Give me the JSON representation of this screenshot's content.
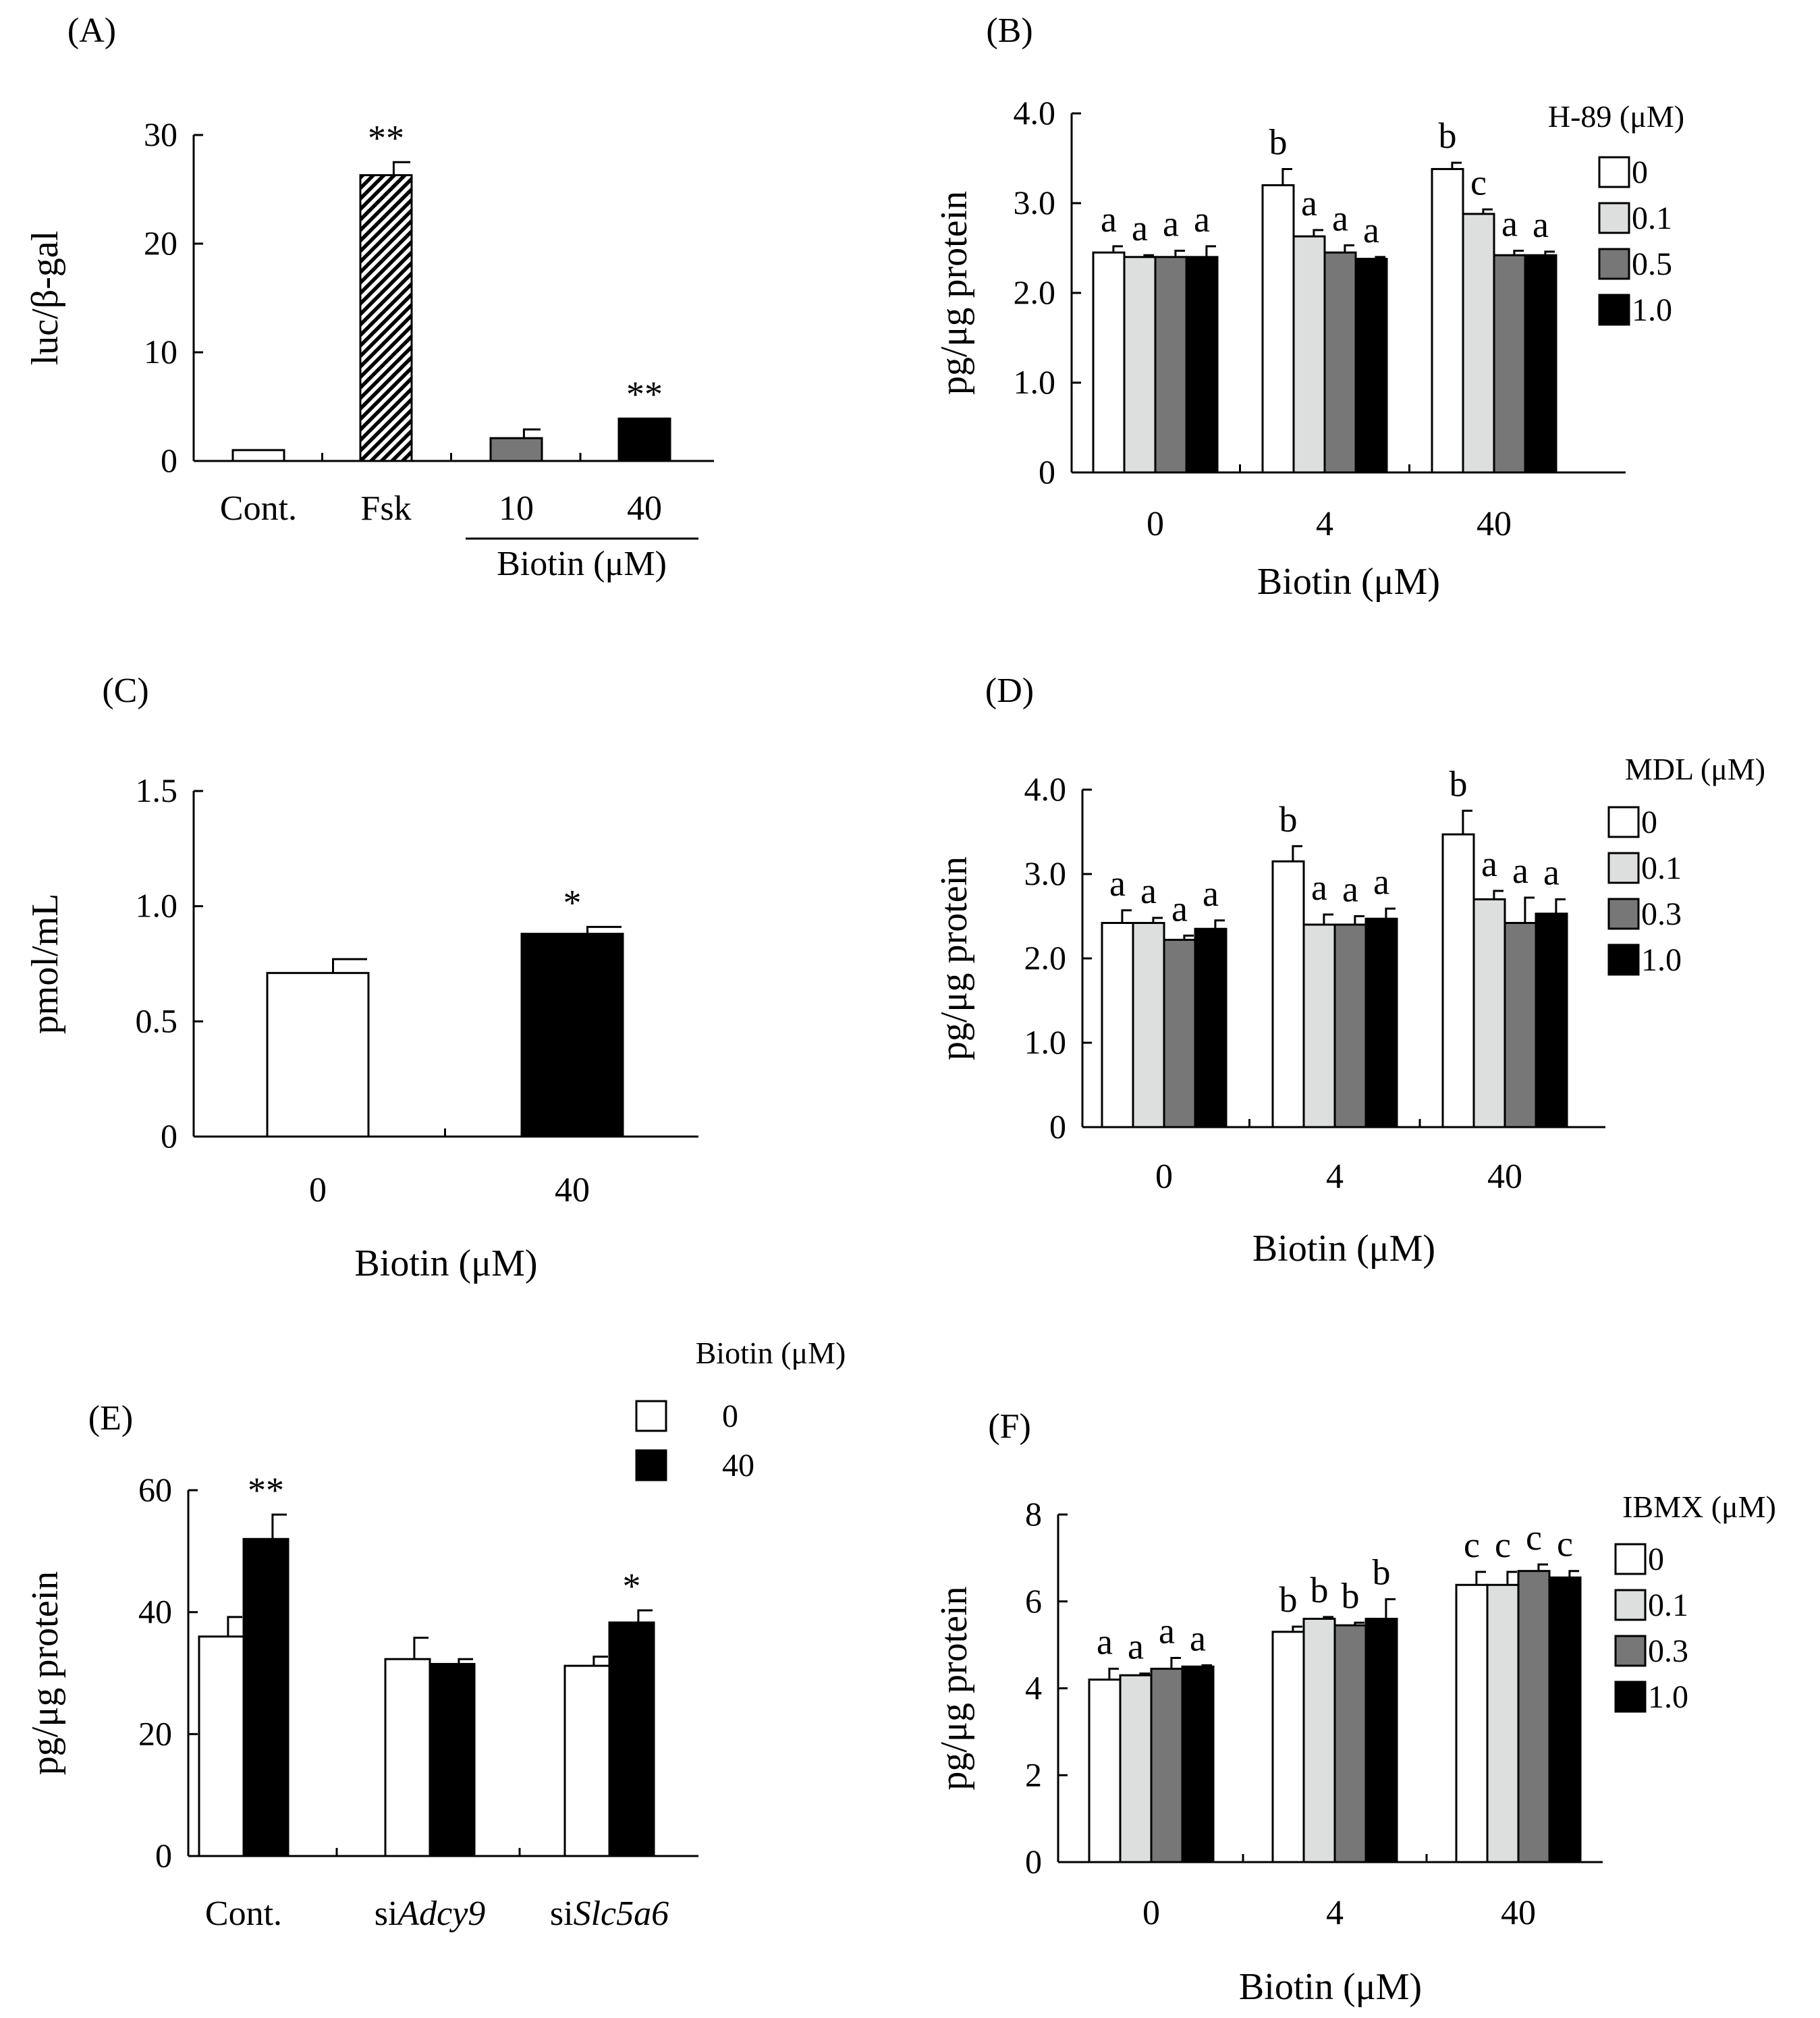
{
  "colors": {
    "white": "#ffffff",
    "light": "#dcdfde",
    "gray": "#777777",
    "black": "#000000"
  },
  "chart_data": [
    {
      "id": "A",
      "panel_label": "(A)",
      "type": "bar",
      "ylabel": "luc/β-gal",
      "ylim": [
        0,
        30
      ],
      "yticks": [
        "0",
        "10",
        "20",
        "30"
      ],
      "categories": [
        "Cont.",
        "Fsk",
        "10",
        "40"
      ],
      "group_label": "Biotin (μM)",
      "values": [
        1,
        26.3,
        2.1,
        3.9
      ],
      "errors": [
        0,
        1.2,
        0.8,
        0
      ],
      "fills": [
        "white",
        "hatch",
        "gray",
        "black"
      ],
      "annotations": [
        "",
        "**",
        "",
        "**"
      ]
    },
    {
      "id": "B",
      "panel_label": "(B)",
      "type": "bar",
      "ylabel": "pg/μg protein",
      "xlabel": "Biotin (μM)",
      "ylim": [
        0,
        4.0
      ],
      "yticks": [
        "0",
        "1.0",
        "2.0",
        "3.0",
        "4.0"
      ],
      "categories": [
        "0",
        "4",
        "40"
      ],
      "legend_title": "H-89 (μM)",
      "series": [
        {
          "name": "0",
          "fill": "white",
          "values": [
            2.45,
            3.2,
            3.38
          ],
          "errors": [
            0.07,
            0.18,
            0.07
          ],
          "annotations": [
            "a",
            "b",
            "b"
          ]
        },
        {
          "name": "0.1",
          "fill": "light",
          "values": [
            2.4,
            2.63,
            2.88
          ],
          "errors": [
            0.02,
            0.07,
            0.05
          ],
          "annotations": [
            "a",
            "a",
            "c"
          ]
        },
        {
          "name": "0.5",
          "fill": "gray",
          "values": [
            2.4,
            2.45,
            2.42
          ],
          "errors": [
            0.07,
            0.08,
            0.05
          ],
          "annotations": [
            "a",
            "a",
            "a"
          ]
        },
        {
          "name": "1.0",
          "fill": "black",
          "values": [
            2.4,
            2.38,
            2.42
          ],
          "errors": [
            0.12,
            0.02,
            0.04
          ],
          "annotations": [
            "a",
            "a",
            "a"
          ]
        }
      ]
    },
    {
      "id": "C",
      "panel_label": "(C)",
      "type": "bar",
      "ylabel": "pmol/mL",
      "xlabel": "Biotin (μM)",
      "ylim": [
        0,
        1.5
      ],
      "yticks": [
        "0",
        "0.5",
        "1.0",
        "1.5"
      ],
      "categories": [
        "0",
        "40"
      ],
      "values": [
        0.71,
        0.88
      ],
      "errors": [
        0.06,
        0.03
      ],
      "fills": [
        "white",
        "black"
      ],
      "annotations": [
        "",
        "*"
      ]
    },
    {
      "id": "D",
      "panel_label": "(D)",
      "type": "bar",
      "ylabel": "pg/μg protein",
      "xlabel": "Biotin (μM)",
      "ylim": [
        0,
        4.0
      ],
      "yticks": [
        "0",
        "1.0",
        "2.0",
        "3.0",
        "4.0"
      ],
      "categories": [
        "0",
        "4",
        "40"
      ],
      "legend_title": "MDL (μM)",
      "series": [
        {
          "name": "0",
          "fill": "white",
          "values": [
            2.42,
            3.15,
            3.47
          ],
          "errors": [
            0.15,
            0.18,
            0.28
          ],
          "annotations": [
            "a",
            "b",
            "b"
          ]
        },
        {
          "name": "0.1",
          "fill": "light",
          "values": [
            2.42,
            2.4,
            2.7
          ],
          "errors": [
            0.06,
            0.12,
            0.1
          ],
          "annotations": [
            "a",
            "a",
            "a"
          ]
        },
        {
          "name": "0.3",
          "fill": "gray",
          "values": [
            2.22,
            2.4,
            2.42
          ],
          "errors": [
            0.05,
            0.1,
            0.3
          ],
          "annotations": [
            "a",
            "a",
            "a"
          ]
        },
        {
          "name": "1.0",
          "fill": "black",
          "values": [
            2.35,
            2.47,
            2.53
          ],
          "errors": [
            0.1,
            0.12,
            0.17
          ],
          "annotations": [
            "a",
            "a",
            "a"
          ]
        }
      ]
    },
    {
      "id": "E",
      "panel_label": "(E)",
      "type": "bar",
      "ylabel": "pg/μg protein",
      "ylim": [
        0,
        60
      ],
      "yticks": [
        "0",
        "20",
        "40",
        "60"
      ],
      "categories": [
        {
          "prefix": "",
          "italic": "",
          "plain": "Cont."
        },
        {
          "prefix": "si",
          "italic": "Adcy9",
          "plain": ""
        },
        {
          "prefix": "si",
          "italic": "Slc5a6",
          "plain": ""
        }
      ],
      "legend_title": "Biotin (μM)",
      "series": [
        {
          "name": "0",
          "fill": "white",
          "values": [
            36,
            32.3,
            31.2
          ],
          "errors": [
            3.2,
            3.5,
            1.5
          ],
          "annotations": [
            "",
            "",
            ""
          ]
        },
        {
          "name": "40",
          "fill": "black",
          "values": [
            52,
            31.5,
            38.3
          ],
          "errors": [
            4,
            0.8,
            2
          ],
          "annotations": [
            "**",
            "",
            "*"
          ]
        }
      ]
    },
    {
      "id": "F",
      "panel_label": "(F)",
      "type": "bar",
      "ylabel": "pg/μg protein",
      "xlabel": "Biotin (μM)",
      "ylim": [
        0,
        8
      ],
      "yticks": [
        "0",
        "2",
        "4",
        "6",
        "8"
      ],
      "categories": [
        "0",
        "4",
        "40"
      ],
      "legend_title": "IBMX (μM)",
      "series": [
        {
          "name": "0",
          "fill": "white",
          "values": [
            4.2,
            5.3,
            6.38
          ],
          "errors": [
            0.25,
            0.12,
            0.3
          ],
          "annotations": [
            "a",
            "b",
            "c"
          ]
        },
        {
          "name": "0.1",
          "fill": "light",
          "values": [
            4.3,
            5.6,
            6.38
          ],
          "errors": [
            0.04,
            0.04,
            0.3
          ],
          "annotations": [
            "a",
            "b",
            "c"
          ]
        },
        {
          "name": "0.3",
          "fill": "gray",
          "values": [
            4.45,
            5.45,
            6.7
          ],
          "errors": [
            0.25,
            0.06,
            0.15
          ],
          "annotations": [
            "a",
            "b",
            "c"
          ]
        },
        {
          "name": "1.0",
          "fill": "black",
          "values": [
            4.5,
            5.6,
            6.55
          ],
          "errors": [
            0.03,
            0.45,
            0.15
          ],
          "annotations": [
            "a",
            "b",
            "c"
          ]
        }
      ]
    }
  ]
}
